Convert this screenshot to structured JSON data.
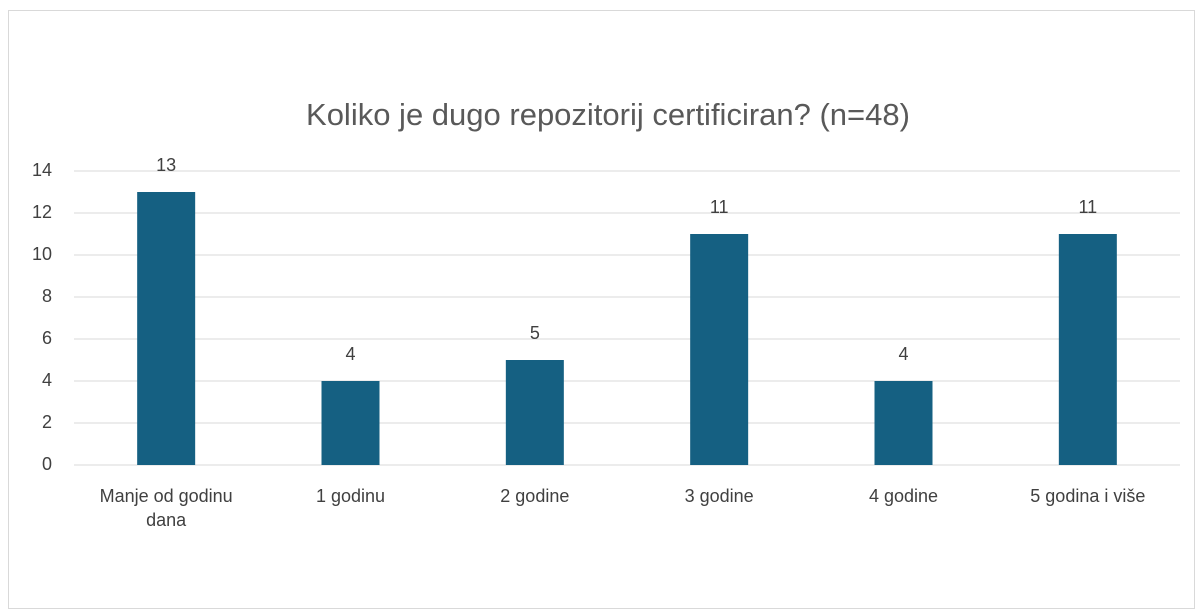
{
  "chart_data": {
    "type": "bar",
    "title": "Koliko je dugo repozitorij certificiran? (n=48)",
    "categories": [
      "Manje od godinu dana",
      "1 godinu",
      "2 godine",
      "3 godine",
      "4 godine",
      "5 godina i više"
    ],
    "values": [
      13,
      4,
      5,
      11,
      4,
      11
    ],
    "color": "#156082",
    "ylim": [
      0,
      14
    ],
    "yticks": [
      0,
      2,
      4,
      6,
      8,
      10,
      12,
      14
    ],
    "grid": true,
    "data_labels": true
  }
}
